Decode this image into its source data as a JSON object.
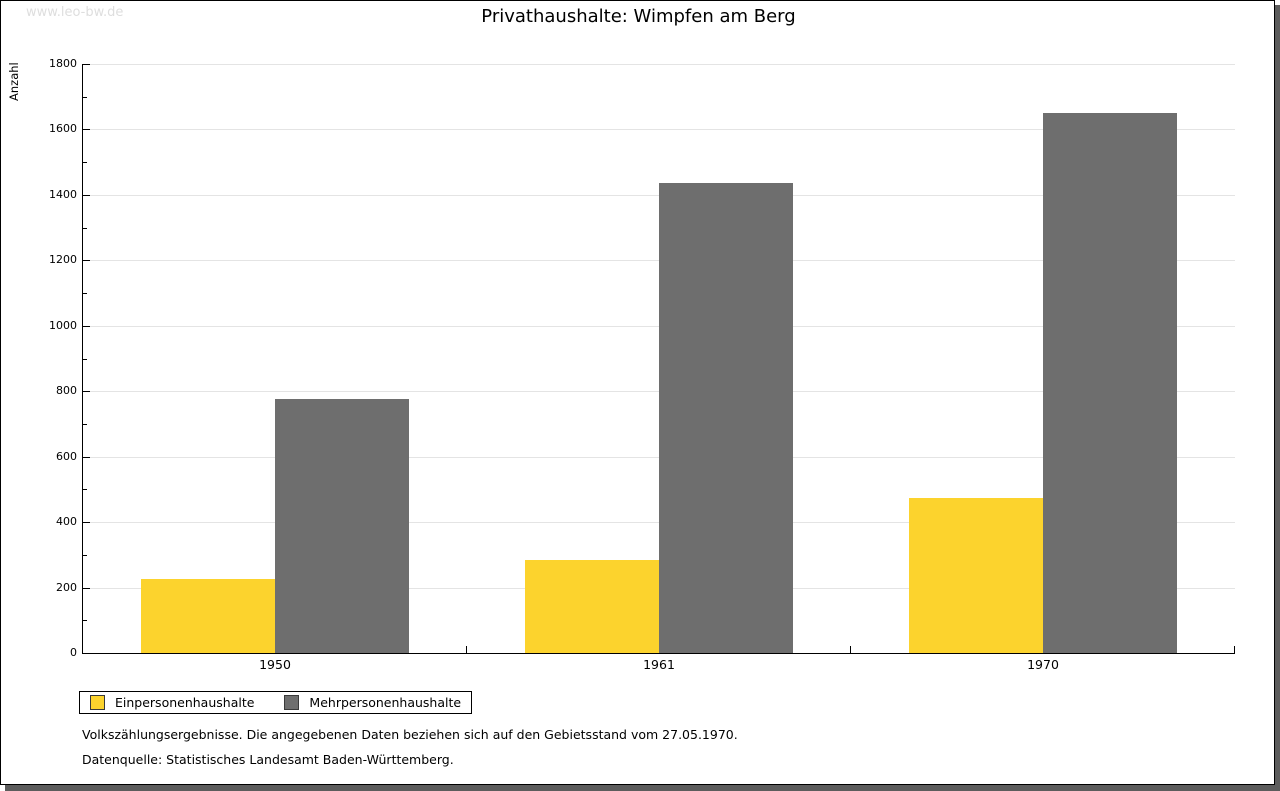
{
  "page": {
    "watermark": "www.leo-bw.de",
    "footnote1": "Volkszählungsergebnisse. Die angegebenen Daten beziehen sich auf den Gebietsstand vom 27.05.1970.",
    "footnote2": "Datenquelle: Statistisches Landesamt Baden-Württemberg."
  },
  "chart_data": {
    "type": "bar",
    "title": "Privathaushalte: Wimpfen am Berg",
    "xlabel": "",
    "ylabel": "Anzahl",
    "categories": [
      "1950",
      "1961",
      "1970"
    ],
    "series": [
      {
        "name": "Einpersonenhaushalte",
        "color": "#fcd32d",
        "values": [
          225,
          283,
          475
        ]
      },
      {
        "name": "Mehrpersonenhaushalte",
        "color": "#6e6e6e",
        "values": [
          775,
          1435,
          1650
        ]
      }
    ],
    "ylim": [
      0,
      1800
    ],
    "y_ticks": [
      0,
      200,
      400,
      600,
      800,
      1000,
      1200,
      1400,
      1600,
      1800
    ],
    "y_major_step": 200,
    "y_minor_step": 100,
    "grid": true,
    "gridline_color": "#e4e4e4",
    "legend_position": "bottom-left"
  }
}
